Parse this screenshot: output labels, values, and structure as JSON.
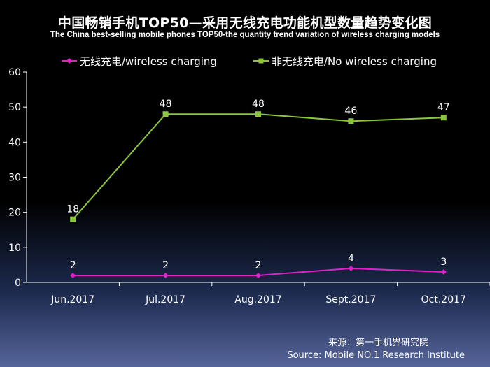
{
  "chart_data": {
    "type": "line",
    "title": "中国畅销手机TOP50—采用无线充电功能机型数量趋势变化图",
    "subtitle": "The China best-selling mobile phones TOP50-the quantity trend variation of wireless charging models",
    "categories": [
      "Jun.2017",
      "Jul.2017",
      "Aug.2017",
      "Sept.2017",
      "Oct.2017"
    ],
    "series": [
      {
        "name": "无线充电/wireless charging",
        "values": [
          2,
          2,
          2,
          4,
          3
        ],
        "color": "#e020c8",
        "marker": "diamond"
      },
      {
        "name": "非无线充电/No wireless charging",
        "values": [
          18,
          48,
          48,
          46,
          47
        ],
        "color": "#8cc63f",
        "marker": "square"
      }
    ],
    "ylim": [
      0,
      60
    ],
    "yticks": [
      0,
      10,
      20,
      30,
      40,
      50,
      60
    ],
    "legend_position": "top",
    "grid": false
  },
  "source": {
    "cn": "来源：第一手机界研究院",
    "en": "Source: Mobile NO.1 Research Institute"
  }
}
